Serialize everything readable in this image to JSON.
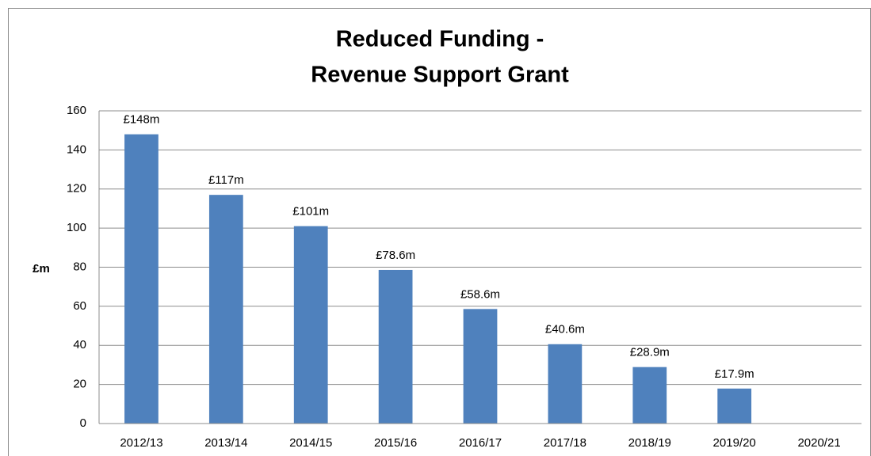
{
  "chart_data": {
    "type": "bar",
    "title": [
      "Reduced Funding -",
      "Revenue Support Grant"
    ],
    "ylabel": "£m",
    "categories": [
      "2012/13",
      "2013/14",
      "2014/15",
      "2015/16",
      "2016/17",
      "2017/18",
      "2018/19",
      "2019/20",
      "2020/21"
    ],
    "values": [
      148,
      117,
      101,
      78.6,
      58.6,
      40.6,
      28.9,
      17.9,
      null
    ],
    "value_labels": [
      "£148m",
      "£117m",
      "£101m",
      "£78.6m",
      "£58.6m",
      "£40.6m",
      "£28.9m",
      "£17.9m",
      null
    ],
    "color": "#4f81bd",
    "ylim": [
      0,
      160
    ],
    "yticks": [
      0,
      20,
      40,
      60,
      80,
      100,
      120,
      140,
      160
    ],
    "grid": true
  }
}
